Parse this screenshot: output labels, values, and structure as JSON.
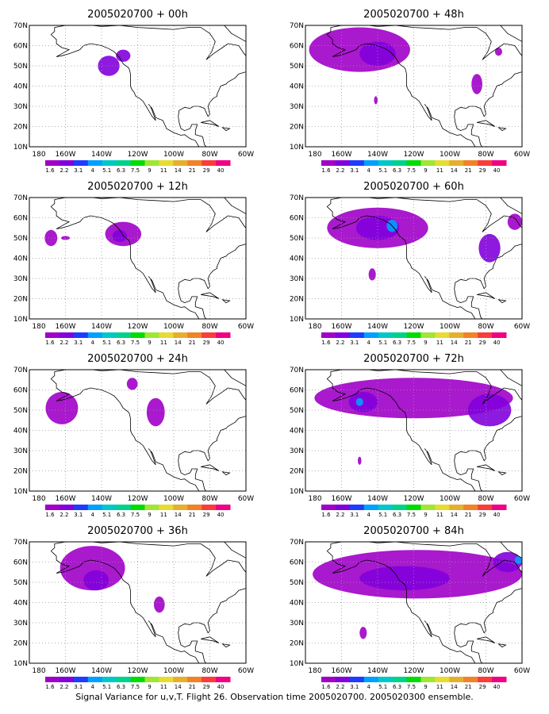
{
  "chart_data": [
    {
      "type": "heatmap",
      "title": "2005020700 + 00h",
      "x_ticks": [
        "180",
        "160W",
        "140W",
        "120W",
        "100W",
        "80W",
        "60W"
      ],
      "y_ticks": [
        "10N",
        "20N",
        "30N",
        "40N",
        "50N",
        "60N",
        "70N"
      ],
      "xlim": [
        -180,
        -60
      ],
      "ylim": [
        10,
        70
      ],
      "grid": true,
      "colorbar": [
        "1.6",
        "2.2",
        "3.1",
        "4",
        "5.1",
        "6.3",
        "7.5",
        "9",
        "11",
        "14",
        "21",
        "29",
        "40"
      ],
      "regions": [
        {
          "lon": -136,
          "lat": 50,
          "rlon": 6,
          "rlat": 5,
          "level": 1
        },
        {
          "lon": -128,
          "lat": 55,
          "rlon": 4,
          "rlat": 3,
          "level": 1
        }
      ]
    },
    {
      "type": "heatmap",
      "title": "2005020700 + 12h",
      "x_ticks": [
        "180",
        "160W",
        "140W",
        "120W",
        "100W",
        "80W",
        "60W"
      ],
      "y_ticks": [
        "10N",
        "20N",
        "30N",
        "40N",
        "50N",
        "60N",
        "70N"
      ],
      "xlim": [
        -180,
        -60
      ],
      "ylim": [
        10,
        70
      ],
      "grid": true,
      "colorbar": [
        "1.6",
        "2.2",
        "3.1",
        "4",
        "5.1",
        "6.3",
        "7.5",
        "9",
        "11",
        "14",
        "21",
        "29",
        "40"
      ],
      "regions": [
        {
          "lon": -168,
          "lat": 50,
          "rlon": 3.5,
          "rlat": 4,
          "level": 0
        },
        {
          "lon": -160,
          "lat": 50,
          "rlon": 2.5,
          "rlat": 1,
          "level": 0
        },
        {
          "lon": -128,
          "lat": 52,
          "rlon": 10,
          "rlat": 6,
          "level": 0
        },
        {
          "lon": -130,
          "lat": 51,
          "rlon": 4,
          "rlat": 3,
          "level": 1
        }
      ]
    },
    {
      "type": "heatmap",
      "title": "2005020700 + 24h",
      "x_ticks": [
        "180",
        "160W",
        "140W",
        "120W",
        "100W",
        "80W",
        "60W"
      ],
      "y_ticks": [
        "10N",
        "20N",
        "30N",
        "40N",
        "50N",
        "60N",
        "70N"
      ],
      "xlim": [
        -180,
        -60
      ],
      "ylim": [
        10,
        70
      ],
      "grid": true,
      "colorbar": [
        "1.6",
        "2.2",
        "3.1",
        "4",
        "5.1",
        "6.3",
        "7.5",
        "9",
        "11",
        "14",
        "21",
        "29",
        "40"
      ],
      "regions": [
        {
          "lon": -162,
          "lat": 51,
          "rlon": 9,
          "rlat": 8,
          "level": 0
        },
        {
          "lon": -123,
          "lat": 63,
          "rlon": 3,
          "rlat": 3,
          "level": 0
        },
        {
          "lon": -110,
          "lat": 49,
          "rlon": 5,
          "rlat": 7,
          "level": 0
        }
      ]
    },
    {
      "type": "heatmap",
      "title": "2005020700 + 36h",
      "x_ticks": [
        "180",
        "160W",
        "140W",
        "120W",
        "100W",
        "80W",
        "60W"
      ],
      "y_ticks": [
        "10N",
        "20N",
        "30N",
        "40N",
        "50N",
        "60N",
        "70N"
      ],
      "xlim": [
        -180,
        -60
      ],
      "ylim": [
        10,
        70
      ],
      "grid": true,
      "colorbar": [
        "1.6",
        "2.2",
        "3.1",
        "4",
        "5.1",
        "6.3",
        "7.5",
        "9",
        "11",
        "14",
        "21",
        "29",
        "40"
      ],
      "regions": [
        {
          "lon": -145,
          "lat": 57,
          "rlon": 18,
          "rlat": 11,
          "level": 0
        },
        {
          "lon": -143,
          "lat": 51,
          "rlon": 7,
          "rlat": 5,
          "level": 1
        },
        {
          "lon": -108,
          "lat": 39,
          "rlon": 3,
          "rlat": 4,
          "level": 0
        }
      ]
    },
    {
      "type": "heatmap",
      "title": "2005020700 + 48h",
      "x_ticks": [
        "180",
        "160W",
        "140W",
        "120W",
        "100W",
        "80W",
        "60W"
      ],
      "y_ticks": [
        "10N",
        "20N",
        "30N",
        "40N",
        "50N",
        "60N",
        "70N"
      ],
      "xlim": [
        -180,
        -60
      ],
      "ylim": [
        10,
        70
      ],
      "grid": true,
      "colorbar": [
        "1.6",
        "2.2",
        "3.1",
        "4",
        "5.1",
        "6.3",
        "7.5",
        "9",
        "11",
        "14",
        "21",
        "29",
        "40"
      ],
      "regions": [
        {
          "lon": -150,
          "lat": 58,
          "rlon": 28,
          "rlat": 11,
          "level": 0
        },
        {
          "lon": -140,
          "lat": 56,
          "rlon": 10,
          "rlat": 6,
          "level": 1
        },
        {
          "lon": -85,
          "lat": 41,
          "rlon": 3,
          "rlat": 5,
          "level": 0
        },
        {
          "lon": -73,
          "lat": 57,
          "rlon": 2,
          "rlat": 2,
          "level": 0
        },
        {
          "lon": -141,
          "lat": 33,
          "rlon": 1,
          "rlat": 2,
          "level": 0
        }
      ]
    },
    {
      "type": "heatmap",
      "title": "2005020700 + 60h",
      "x_ticks": [
        "180",
        "160W",
        "140W",
        "120W",
        "100W",
        "80W",
        "60W"
      ],
      "y_ticks": [
        "10N",
        "20N",
        "30N",
        "40N",
        "50N",
        "60N",
        "70N"
      ],
      "xlim": [
        -180,
        -60
      ],
      "ylim": [
        10,
        70
      ],
      "grid": true,
      "colorbar": [
        "1.6",
        "2.2",
        "3.1",
        "4",
        "5.1",
        "6.3",
        "7.5",
        "9",
        "11",
        "14",
        "21",
        "29",
        "40"
      ],
      "regions": [
        {
          "lon": -140,
          "lat": 55,
          "rlon": 28,
          "rlat": 10,
          "level": 0
        },
        {
          "lon": -140,
          "lat": 55,
          "rlon": 12,
          "rlat": 6,
          "level": 1
        },
        {
          "lon": -132,
          "lat": 56,
          "rlon": 3,
          "rlat": 3,
          "level": 3
        },
        {
          "lon": -78,
          "lat": 45,
          "rlon": 6,
          "rlat": 7,
          "level": 1
        },
        {
          "lon": -64,
          "lat": 58,
          "rlon": 4,
          "rlat": 4,
          "level": 0
        },
        {
          "lon": -143,
          "lat": 32,
          "rlon": 2,
          "rlat": 3,
          "level": 0
        }
      ]
    },
    {
      "type": "heatmap",
      "title": "2005020700 + 72h",
      "x_ticks": [
        "180",
        "160W",
        "140W",
        "120W",
        "100W",
        "80W",
        "60W"
      ],
      "y_ticks": [
        "10N",
        "20N",
        "30N",
        "40N",
        "50N",
        "60N",
        "70N"
      ],
      "xlim": [
        -180,
        -60
      ],
      "ylim": [
        10,
        70
      ],
      "grid": true,
      "colorbar": [
        "1.6",
        "2.2",
        "3.1",
        "4",
        "5.1",
        "6.3",
        "7.5",
        "9",
        "11",
        "14",
        "21",
        "29",
        "40"
      ],
      "regions": [
        {
          "lon": -120,
          "lat": 56,
          "rlon": 55,
          "rlat": 10,
          "level": 0
        },
        {
          "lon": -148,
          "lat": 54,
          "rlon": 8,
          "rlat": 5,
          "level": 1
        },
        {
          "lon": -150,
          "lat": 54,
          "rlon": 2,
          "rlat": 2,
          "level": 3
        },
        {
          "lon": -78,
          "lat": 50,
          "rlon": 12,
          "rlat": 8,
          "level": 1
        },
        {
          "lon": -150,
          "lat": 25,
          "rlon": 1,
          "rlat": 2,
          "level": 0
        }
      ]
    },
    {
      "type": "heatmap",
      "title": "2005020700 + 84h",
      "x_ticks": [
        "180",
        "160W",
        "140W",
        "120W",
        "100W",
        "80W",
        "60W"
      ],
      "y_ticks": [
        "10N",
        "20N",
        "30N",
        "40N",
        "50N",
        "60N",
        "70N"
      ],
      "xlim": [
        -180,
        -60
      ],
      "ylim": [
        10,
        70
      ],
      "grid": true,
      "colorbar": [
        "1.6",
        "2.2",
        "3.1",
        "4",
        "5.1",
        "6.3",
        "7.5",
        "9",
        "11",
        "14",
        "21",
        "29",
        "40"
      ],
      "regions": [
        {
          "lon": -118,
          "lat": 54,
          "rlon": 58,
          "rlat": 12,
          "level": 0
        },
        {
          "lon": -125,
          "lat": 52,
          "rlon": 25,
          "rlat": 6,
          "level": 1
        },
        {
          "lon": -68,
          "lat": 60,
          "rlon": 8,
          "rlat": 5,
          "level": 1
        },
        {
          "lon": -62,
          "lat": 61,
          "rlon": 2,
          "rlat": 2,
          "level": 3
        },
        {
          "lon": -148,
          "lat": 25,
          "rlon": 2,
          "rlat": 3,
          "level": 0
        }
      ]
    }
  ],
  "colors": [
    "#a000c8",
    "#8200dc",
    "#1e3cff",
    "#00a0ff",
    "#00c8c8",
    "#00d28c",
    "#00dc00",
    "#a0e632",
    "#e6dc32",
    "#e6af2d",
    "#f08228",
    "#fa3c3c",
    "#f00082"
  ],
  "caption": "Signal Variance for u,v,T. Flight 26. Observation time 2005020700. 2005020300 ensemble."
}
